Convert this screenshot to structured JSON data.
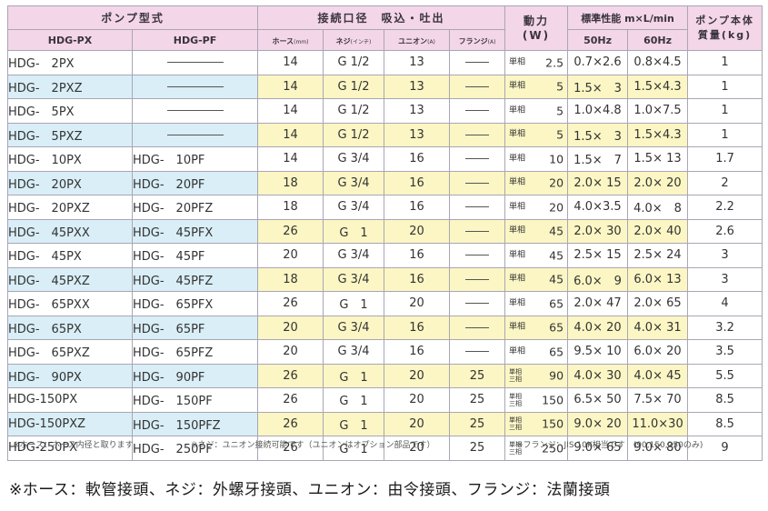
{
  "header": {
    "model_group": "ポンプ型式",
    "connection_group": "接続口径　吸込・吐出",
    "power": "動力",
    "power_unit": "(W)",
    "performance_group": "標準性能 m×L/min",
    "weight_line1": "ポンプ本体",
    "weight_line2": "質量(kg)",
    "col_px": "HDG-PX",
    "col_pf": "HDG-PF",
    "col_hose": "ホース",
    "col_hose_unit": "(mm)",
    "col_screw": "ネジ",
    "col_screw_unit": "(インチ)",
    "col_union": "ユニオン",
    "col_union_unit": "(A)",
    "col_flange": "フランジ",
    "col_flange_unit": "(A)",
    "col_50hz": "50Hz",
    "col_60hz": "60Hz"
  },
  "rows": [
    {
      "px": "HDG-　2PX",
      "pf": "",
      "hose": "14",
      "screw": "G 1/2",
      "union": "13",
      "flange": "",
      "phase": "単相",
      "power": "2.5",
      "hz50": "0.7×2.6",
      "hz60": "0.8×4.5",
      "weight": "1",
      "tone": "white"
    },
    {
      "px": "HDG-　2PXZ",
      "pf": "",
      "hose": "14",
      "screw": "G 1/2",
      "union": "13",
      "flange": "",
      "phase": "単相",
      "power": "5",
      "hz50": "1.5×　3",
      "hz60": "1.5×4.3",
      "weight": "1",
      "tone": "blue"
    },
    {
      "px": "HDG-　5PX",
      "pf": "",
      "hose": "14",
      "screw": "G 1/2",
      "union": "13",
      "flange": "",
      "phase": "単相",
      "power": "5",
      "hz50": "1.0×4.8",
      "hz60": "1.0×7.5",
      "weight": "1",
      "tone": "white"
    },
    {
      "px": "HDG-　5PXZ",
      "pf": "",
      "hose": "14",
      "screw": "G 1/2",
      "union": "13",
      "flange": "",
      "phase": "単相",
      "power": "5",
      "hz50": "1.5×　3",
      "hz60": "1.5×4.3",
      "weight": "1",
      "tone": "blue"
    },
    {
      "px": "HDG-　10PX",
      "pf": "HDG-　10PF",
      "hose": "14",
      "screw": "G 3/4",
      "union": "16",
      "flange": "",
      "phase": "単相",
      "power": "10",
      "hz50": "1.5×　7",
      "hz60": "1.5× 13",
      "weight": "1.7",
      "tone": "white"
    },
    {
      "px": "HDG-　20PX",
      "pf": "HDG-　20PF",
      "hose": "18",
      "screw": "G 3/4",
      "union": "16",
      "flange": "",
      "phase": "単相",
      "power": "20",
      "hz50": "2.0× 15",
      "hz60": "2.0× 20",
      "weight": "2",
      "tone": "blue"
    },
    {
      "px": "HDG-　20PXZ",
      "pf": "HDG-　20PFZ",
      "hose": "18",
      "screw": "G 3/4",
      "union": "16",
      "flange": "",
      "phase": "単相",
      "power": "20",
      "hz50": "4.0×3.5",
      "hz60": "4.0×　8",
      "weight": "2.2",
      "tone": "white"
    },
    {
      "px": "HDG-　45PXX",
      "pf": "HDG-　45PFX",
      "hose": "26",
      "screw": "G　1",
      "union": "20",
      "flange": "",
      "phase": "単相",
      "power": "45",
      "hz50": "2.0× 30",
      "hz60": "2.0× 40",
      "weight": "2.6",
      "tone": "blue"
    },
    {
      "px": "HDG-　45PX",
      "pf": "HDG-　45PF",
      "hose": "20",
      "screw": "G 3/4",
      "union": "16",
      "flange": "",
      "phase": "単相",
      "power": "45",
      "hz50": "2.5× 15",
      "hz60": "2.5× 24",
      "weight": "3",
      "tone": "white"
    },
    {
      "px": "HDG-　45PXZ",
      "pf": "HDG-　45PFZ",
      "hose": "18",
      "screw": "G 3/4",
      "union": "16",
      "flange": "",
      "phase": "単相",
      "power": "45",
      "hz50": "6.0×　9",
      "hz60": "6.0× 13",
      "weight": "3",
      "tone": "blue"
    },
    {
      "px": "HDG-　65PXX",
      "pf": "HDG-　65PFX",
      "hose": "26",
      "screw": "G　1",
      "union": "20",
      "flange": "",
      "phase": "単相",
      "power": "65",
      "hz50": "2.0× 47",
      "hz60": "2.0× 65",
      "weight": "4",
      "tone": "white"
    },
    {
      "px": "HDG-　65PX",
      "pf": "HDG-　65PF",
      "hose": "20",
      "screw": "G 3/4",
      "union": "16",
      "flange": "",
      "phase": "単相",
      "power": "65",
      "hz50": "4.0× 20",
      "hz60": "4.0× 31",
      "weight": "3.2",
      "tone": "blue"
    },
    {
      "px": "HDG-　65PXZ",
      "pf": "HDG-　65PFZ",
      "hose": "20",
      "screw": "G 3/4",
      "union": "16",
      "flange": "",
      "phase": "単相",
      "power": "65",
      "hz50": "9.5× 10",
      "hz60": "6.0× 20",
      "weight": "3.5",
      "tone": "white"
    },
    {
      "px": "HDG-　90PX",
      "pf": "HDG-　90PF",
      "hose": "26",
      "screw": "G　1",
      "union": "20",
      "flange": "25",
      "phase": "単相/三相",
      "power": "90",
      "hz50": "4.0× 30",
      "hz60": "4.0× 45",
      "weight": "5.5",
      "tone": "blue"
    },
    {
      "px": "HDG-150PX",
      "pf": "HDG-　150PF",
      "hose": "26",
      "screw": "G　1",
      "union": "20",
      "flange": "25",
      "phase": "単相/三相",
      "power": "150",
      "hz50": "6.5× 50",
      "hz60": "7.5× 70",
      "weight": "8.5",
      "tone": "white"
    },
    {
      "px": "HDG-150PXZ",
      "pf": "HDG-　150PFZ",
      "hose": "26",
      "screw": "G　1",
      "union": "20",
      "flange": "25",
      "phase": "単相/三相",
      "power": "150",
      "hz50": "9.0× 20",
      "hz60": "11.0×30",
      "weight": "8.5",
      "tone": "blue"
    },
    {
      "px": "HDG-250PX",
      "pf": "HDG-　250PF",
      "hose": "26",
      "screw": "G　1",
      "union": "20",
      "flange": "25",
      "phase": "単相/三相",
      "power": "250",
      "hz50": "9.0× 65",
      "hz60": "9.0× 80",
      "weight": "9",
      "tone": "white"
    }
  ],
  "notes": {
    "hose": "※ホース：ホース内径と取ります",
    "screw": "※ネジ：ユニオン接続可能です（ユニオンはオプション部品です）",
    "flange": "※フランジ：JIS 10K相当です　(90,150,250のみ)"
  },
  "footer": "※ホース：軟管接頭、ネジ：外螺牙接頭、ユニオン：由令接頭、フランジ：法蘭接頭",
  "colors": {
    "header_pink": "#f3d6e8",
    "row_blue": "#d9eef6",
    "cell_yellow": "#fbf6c4"
  }
}
